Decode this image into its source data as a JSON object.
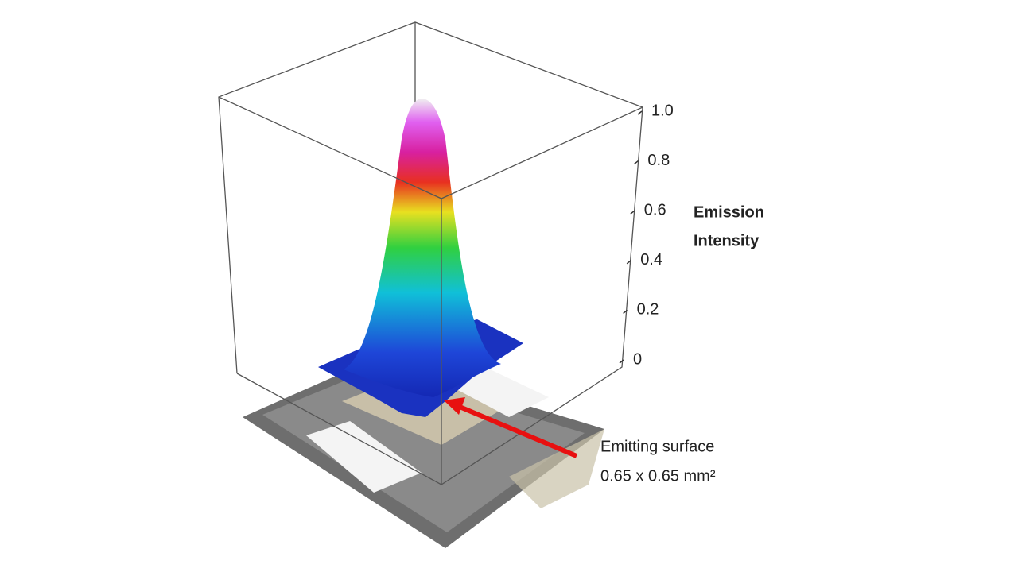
{
  "chart_data": {
    "type": "surface3d",
    "z_axis_label_lines": [
      "Emission",
      "Intensity"
    ],
    "zlim": [
      0,
      1
    ],
    "zticks": [
      0,
      0.2,
      0.4,
      0.6,
      0.8,
      {
        "value": 1,
        "label": "1.0"
      }
    ],
    "annotation_lines": [
      "Emitting surface",
      "0.65 x 0.65 mm²"
    ]
  }
}
